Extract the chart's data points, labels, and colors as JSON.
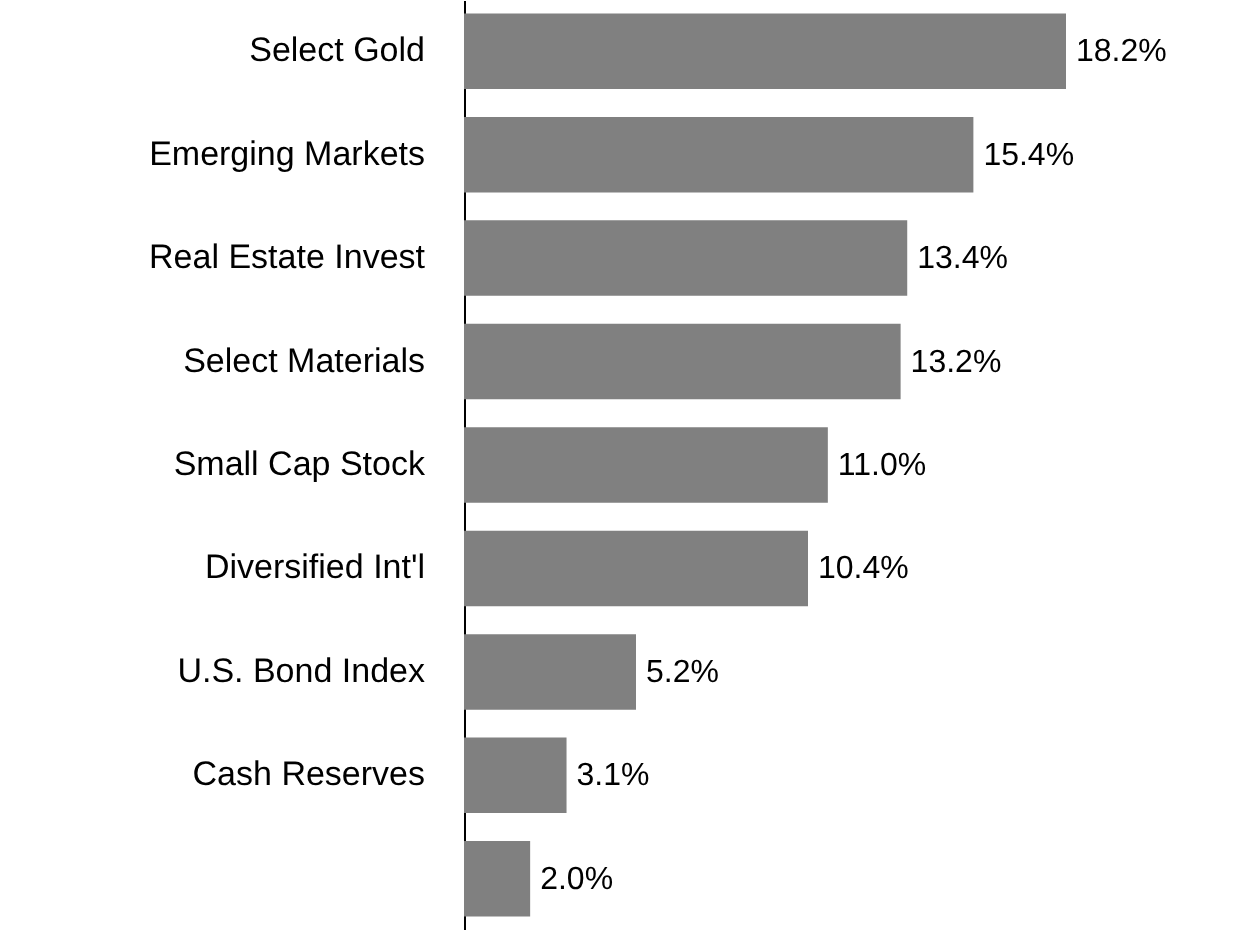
{
  "chart_data": {
    "type": "bar",
    "orientation": "horizontal",
    "categories": [
      "Select Gold",
      "Emerging Markets",
      "Real Estate Invest",
      "Select Materials",
      "Small Cap Stock",
      "Diversified Int'l",
      "U.S. Bond Index",
      "Cash Reserves",
      null
    ],
    "values": [
      18.2,
      15.4,
      13.4,
      13.2,
      11.0,
      10.4,
      5.2,
      3.1,
      2.0
    ],
    "value_labels": [
      "18.2%",
      "15.4%",
      "13.4%",
      "13.2%",
      "11.0%",
      "10.4%",
      "5.2%",
      "3.1%",
      "2.0%"
    ],
    "color": "#808080"
  }
}
